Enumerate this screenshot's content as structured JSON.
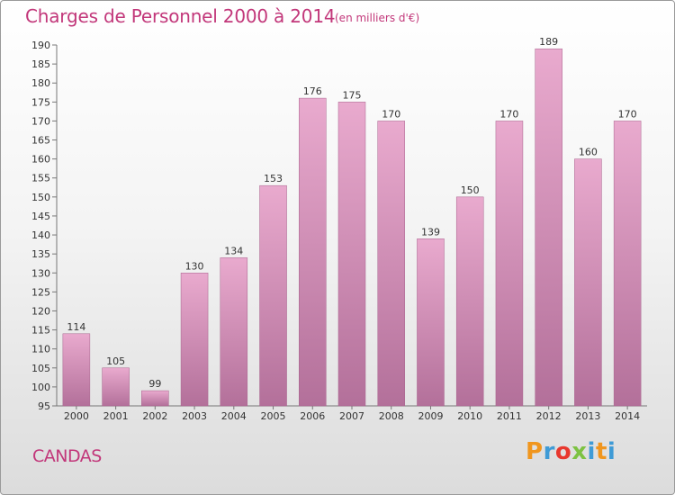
{
  "header": {
    "title": "Charges de Personnel 2000 à 2014",
    "subtitle": "(en milliers d'€)"
  },
  "footer": {
    "commune": "CANDAS",
    "logo_letters": [
      "P",
      "r",
      "o",
      "x",
      "i",
      "t",
      "i"
    ],
    "logo_colors": [
      "#f0961e",
      "#3f9bd6",
      "#e8382e",
      "#7dc242",
      "#3f9bd6",
      "#f0961e",
      "#3f9bd6"
    ]
  },
  "chart_data": {
    "type": "bar",
    "title": "Charges de Personnel 2000 à 2014",
    "subtitle": "(en milliers d'€)",
    "categories": [
      "2000",
      "2001",
      "2002",
      "2003",
      "2004",
      "2005",
      "2006",
      "2007",
      "2008",
      "2009",
      "2010",
      "2011",
      "2012",
      "2013",
      "2014"
    ],
    "values": [
      114,
      105,
      99,
      130,
      134,
      153,
      176,
      175,
      170,
      139,
      150,
      170,
      189,
      160,
      170
    ],
    "ylim": [
      95,
      190
    ],
    "yticks": [
      95,
      100,
      105,
      110,
      115,
      120,
      125,
      130,
      135,
      140,
      145,
      150,
      155,
      160,
      165,
      170,
      175,
      180,
      185,
      190
    ],
    "bar_color": "#c97aa4",
    "data_labels": true,
    "grid": false
  }
}
